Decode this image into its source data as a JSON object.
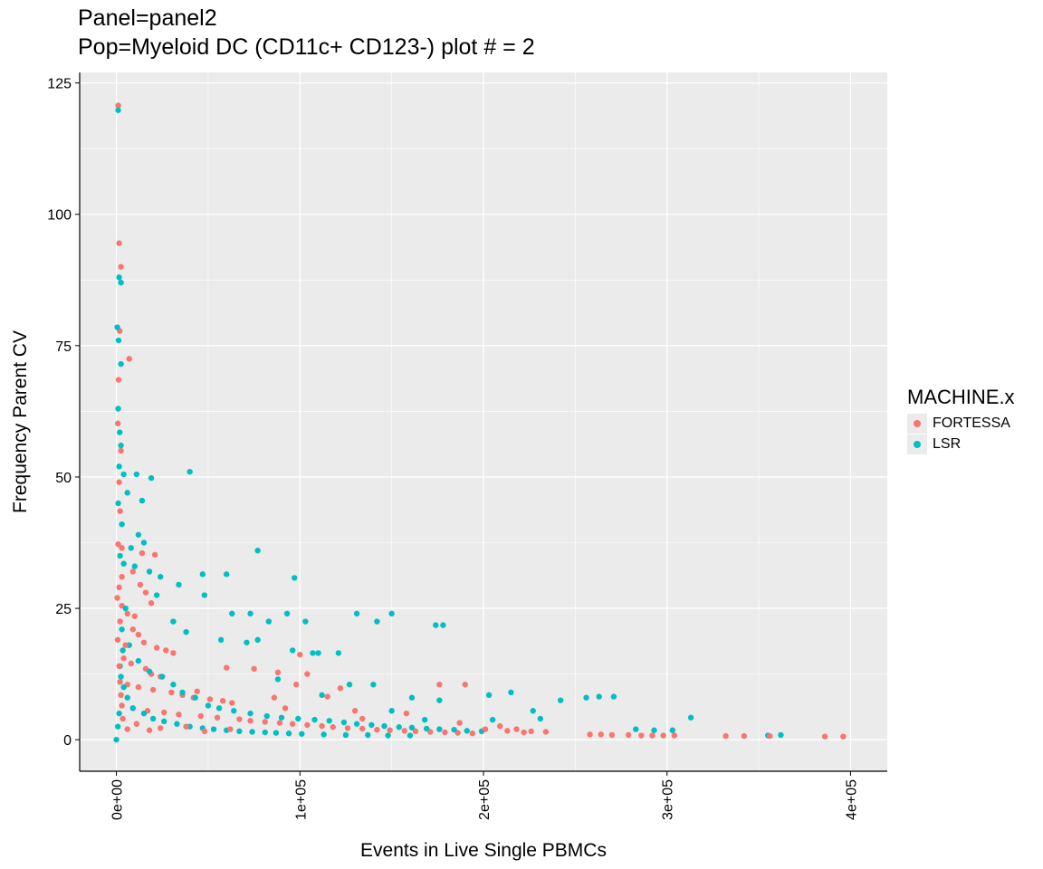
{
  "chart_data": {
    "type": "scatter",
    "title": "Panel=panel2",
    "subtitle": "Pop=Myeloid DC (CD11c+ CD123-) plot # = 2",
    "xlabel": "Events in Live Single PBMCs",
    "ylabel": "Frequency Parent CV",
    "xlim": [
      -20000,
      420000
    ],
    "ylim": [
      -6,
      127
    ],
    "x_ticks": [
      0,
      100000,
      200000,
      300000,
      400000
    ],
    "x_tick_labels": [
      "0e+00",
      "1e+05",
      "2e+05",
      "3e+05",
      "4e+05"
    ],
    "y_ticks": [
      0,
      25,
      50,
      75,
      100,
      125
    ],
    "y_tick_labels": [
      "0",
      "25",
      "50",
      "75",
      "100",
      "125"
    ],
    "grid": true,
    "legend_position": "right",
    "legend_title": "MACHINE.x",
    "series": [
      {
        "name": "FORTESSA",
        "color": "#F8766D",
        "points": [
          [
            1000,
            120.7
          ],
          [
            1500,
            94.5
          ],
          [
            2500,
            90.0
          ],
          [
            1800,
            77.8
          ],
          [
            7000,
            72.5
          ],
          [
            1200,
            68.5
          ],
          [
            800,
            60.2
          ],
          [
            2500,
            55.0
          ],
          [
            1500,
            49.0
          ],
          [
            2000,
            43.5
          ],
          [
            1000,
            37.2
          ],
          [
            3000,
            36.5
          ],
          [
            14000,
            35.5
          ],
          [
            21000,
            35.2
          ],
          [
            9000,
            32.0
          ],
          [
            13000,
            29.5
          ],
          [
            16000,
            28.0
          ],
          [
            19000,
            26.0
          ],
          [
            3000,
            25.5
          ],
          [
            6000,
            24.0
          ],
          [
            2000,
            22.5
          ],
          [
            9000,
            21.0
          ],
          [
            12000,
            20.0
          ],
          [
            15000,
            18.5
          ],
          [
            22000,
            17.5
          ],
          [
            27000,
            17.0
          ],
          [
            31000,
            16.5
          ],
          [
            4000,
            15.5
          ],
          [
            8000,
            14.5
          ],
          [
            16000,
            13.5
          ],
          [
            19000,
            12.5
          ],
          [
            24000,
            12.0
          ],
          [
            2000,
            11.0
          ],
          [
            6000,
            10.5
          ],
          [
            12000,
            10.0
          ],
          [
            20000,
            9.5
          ],
          [
            30000,
            9.0
          ],
          [
            36000,
            8.5
          ],
          [
            42000,
            8.0
          ],
          [
            51000,
            7.7
          ],
          [
            58000,
            7.4
          ],
          [
            63000,
            7.0
          ],
          [
            3000,
            6.5
          ],
          [
            9000,
            6.0
          ],
          [
            17000,
            5.5
          ],
          [
            26000,
            5.2
          ],
          [
            34000,
            4.8
          ],
          [
            46000,
            4.5
          ],
          [
            55000,
            4.2
          ],
          [
            67000,
            3.9
          ],
          [
            73000,
            3.6
          ],
          [
            81000,
            3.4
          ],
          [
            89000,
            3.2
          ],
          [
            96000,
            3.0
          ],
          [
            104000,
            2.8
          ],
          [
            112000,
            2.6
          ],
          [
            118000,
            2.4
          ],
          [
            126000,
            2.2
          ],
          [
            134000,
            2.1
          ],
          [
            142000,
            1.9
          ],
          [
            149000,
            1.8
          ],
          [
            157000,
            1.7
          ],
          [
            163000,
            1.6
          ],
          [
            171000,
            1.5
          ],
          [
            179000,
            1.4
          ],
          [
            186000,
            1.3
          ],
          [
            194000,
            1.2
          ],
          [
            209000,
            2.6
          ],
          [
            218000,
            2.0
          ],
          [
            226000,
            1.6
          ],
          [
            234000,
            1.5
          ],
          [
            258000,
            1.0
          ],
          [
            264000,
            1.0
          ],
          [
            270000,
            0.9
          ],
          [
            279000,
            0.9
          ],
          [
            286000,
            0.8
          ],
          [
            292000,
            0.8
          ],
          [
            298000,
            0.8
          ],
          [
            304000,
            0.8
          ],
          [
            332000,
            0.7
          ],
          [
            342000,
            0.7
          ],
          [
            356000,
            0.7
          ],
          [
            386000,
            0.6
          ],
          [
            396000,
            0.6
          ],
          [
            100000,
            16.2
          ],
          [
            75000,
            13.5
          ],
          [
            88000,
            12.8
          ],
          [
            98000,
            10.5
          ],
          [
            122000,
            9.8
          ],
          [
            176000,
            10.5
          ],
          [
            190000,
            10.5
          ],
          [
            60000,
            13.7
          ],
          [
            44000,
            9.2
          ],
          [
            115000,
            8.2
          ],
          [
            130000,
            5.5
          ],
          [
            158000,
            5.0
          ],
          [
            187000,
            3.2
          ],
          [
            201000,
            2.0
          ],
          [
            213000,
            1.7
          ],
          [
            222000,
            1.4
          ],
          [
            134000,
            4.0
          ],
          [
            92000,
            6.0
          ],
          [
            86000,
            8.0
          ],
          [
            104000,
            12.5
          ],
          [
            5000,
            18.0
          ],
          [
            10000,
            23.5
          ],
          [
            1500,
            29.0
          ],
          [
            3000,
            31.0
          ],
          [
            500,
            27.0
          ],
          [
            700,
            19.0
          ],
          [
            1500,
            14.0
          ],
          [
            2500,
            8.5
          ],
          [
            3500,
            4.0
          ],
          [
            6000,
            2.0
          ],
          [
            11000,
            3.0
          ],
          [
            18000,
            1.8
          ],
          [
            24000,
            2.2
          ],
          [
            38000,
            2.5
          ],
          [
            48000,
            1.6
          ],
          [
            62000,
            2.0
          ]
        ]
      },
      {
        "name": "LSR",
        "color": "#00BFC4",
        "points": [
          [
            1000,
            119.8
          ],
          [
            1500,
            88.0
          ],
          [
            2500,
            87.0
          ],
          [
            500,
            78.5
          ],
          [
            1200,
            76.0
          ],
          [
            2500,
            71.5
          ],
          [
            1000,
            63.0
          ],
          [
            1800,
            58.5
          ],
          [
            2500,
            56.0
          ],
          [
            1500,
            52.0
          ],
          [
            4000,
            50.5
          ],
          [
            11000,
            50.5
          ],
          [
            19000,
            49.8
          ],
          [
            40000,
            51.0
          ],
          [
            6000,
            47.0
          ],
          [
            14000,
            45.5
          ],
          [
            3000,
            41.0
          ],
          [
            12000,
            39.0
          ],
          [
            8000,
            36.5
          ],
          [
            15000,
            37.5
          ],
          [
            4000,
            33.5
          ],
          [
            10000,
            33.0
          ],
          [
            18000,
            32.0
          ],
          [
            24000,
            31.0
          ],
          [
            47000,
            31.5
          ],
          [
            60000,
            31.5
          ],
          [
            77000,
            36.0
          ],
          [
            97000,
            30.8
          ],
          [
            22000,
            27.5
          ],
          [
            34000,
            29.5
          ],
          [
            48000,
            27.5
          ],
          [
            63000,
            24.0
          ],
          [
            73000,
            24.0
          ],
          [
            83000,
            22.5
          ],
          [
            93000,
            24.0
          ],
          [
            103000,
            22.5
          ],
          [
            131000,
            24.0
          ],
          [
            142000,
            22.5
          ],
          [
            150000,
            24.0
          ],
          [
            174000,
            21.8
          ],
          [
            178000,
            21.8
          ],
          [
            31000,
            22.5
          ],
          [
            38000,
            20.5
          ],
          [
            57000,
            19.0
          ],
          [
            71000,
            18.5
          ],
          [
            77000,
            19.0
          ],
          [
            96000,
            17.0
          ],
          [
            107000,
            16.5
          ],
          [
            110000,
            16.5
          ],
          [
            121000,
            16.5
          ],
          [
            140000,
            10.5
          ],
          [
            161000,
            8.0
          ],
          [
            176000,
            7.5
          ],
          [
            203000,
            8.5
          ],
          [
            215000,
            9.0
          ],
          [
            227000,
            5.5
          ],
          [
            242000,
            7.5
          ],
          [
            256000,
            8.0
          ],
          [
            263000,
            8.2
          ],
          [
            271000,
            8.2
          ],
          [
            283000,
            2.0
          ],
          [
            293000,
            1.8
          ],
          [
            303000,
            1.8
          ],
          [
            313000,
            4.2
          ],
          [
            355000,
            0.8
          ],
          [
            362000,
            0.9
          ],
          [
            5000,
            25.0
          ],
          [
            3000,
            21.0
          ],
          [
            7000,
            18.0
          ],
          [
            12000,
            15.0
          ],
          [
            18000,
            13.0
          ],
          [
            25000,
            12.0
          ],
          [
            31000,
            10.5
          ],
          [
            36000,
            9.0
          ],
          [
            43000,
            8.0
          ],
          [
            50000,
            6.5
          ],
          [
            56000,
            6.0
          ],
          [
            64000,
            5.5
          ],
          [
            73000,
            5.0
          ],
          [
            82000,
            4.5
          ],
          [
            90000,
            4.2
          ],
          [
            99000,
            4.0
          ],
          [
            108000,
            3.8
          ],
          [
            116000,
            3.6
          ],
          [
            124000,
            3.3
          ],
          [
            131000,
            3.0
          ],
          [
            139000,
            2.8
          ],
          [
            146000,
            2.6
          ],
          [
            154000,
            2.4
          ],
          [
            161000,
            2.3
          ],
          [
            169000,
            2.1
          ],
          [
            176000,
            2.0
          ],
          [
            184000,
            1.9
          ],
          [
            191000,
            1.7
          ],
          [
            199000,
            1.6
          ],
          [
            2000,
            14.0
          ],
          [
            4000,
            10.0
          ],
          [
            6000,
            8.0
          ],
          [
            9000,
            6.0
          ],
          [
            15000,
            5.0
          ],
          [
            20000,
            4.0
          ],
          [
            26000,
            3.5
          ],
          [
            33000,
            3.0
          ],
          [
            40000,
            2.5
          ],
          [
            47000,
            2.2
          ],
          [
            53000,
            2.0
          ],
          [
            60000,
            1.8
          ],
          [
            67000,
            1.6
          ],
          [
            74000,
            1.5
          ],
          [
            81000,
            1.4
          ],
          [
            87000,
            1.3
          ],
          [
            94000,
            1.2
          ],
          [
            101000,
            1.1
          ],
          [
            113000,
            1.0
          ],
          [
            125000,
            0.9
          ],
          [
            137000,
            0.9
          ],
          [
            148000,
            0.8
          ],
          [
            160000,
            0.8
          ],
          [
            0,
            0.0
          ],
          [
            800,
            2.5
          ],
          [
            1500,
            5.0
          ],
          [
            2500,
            12.0
          ],
          [
            3500,
            17.0
          ],
          [
            1000,
            45.0
          ],
          [
            2000,
            35.0
          ],
          [
            127000,
            10.5
          ],
          [
            88000,
            11.5
          ],
          [
            112000,
            8.5
          ],
          [
            150000,
            5.5
          ],
          [
            168000,
            3.8
          ],
          [
            205000,
            3.8
          ],
          [
            231000,
            4.0
          ]
        ]
      }
    ]
  }
}
